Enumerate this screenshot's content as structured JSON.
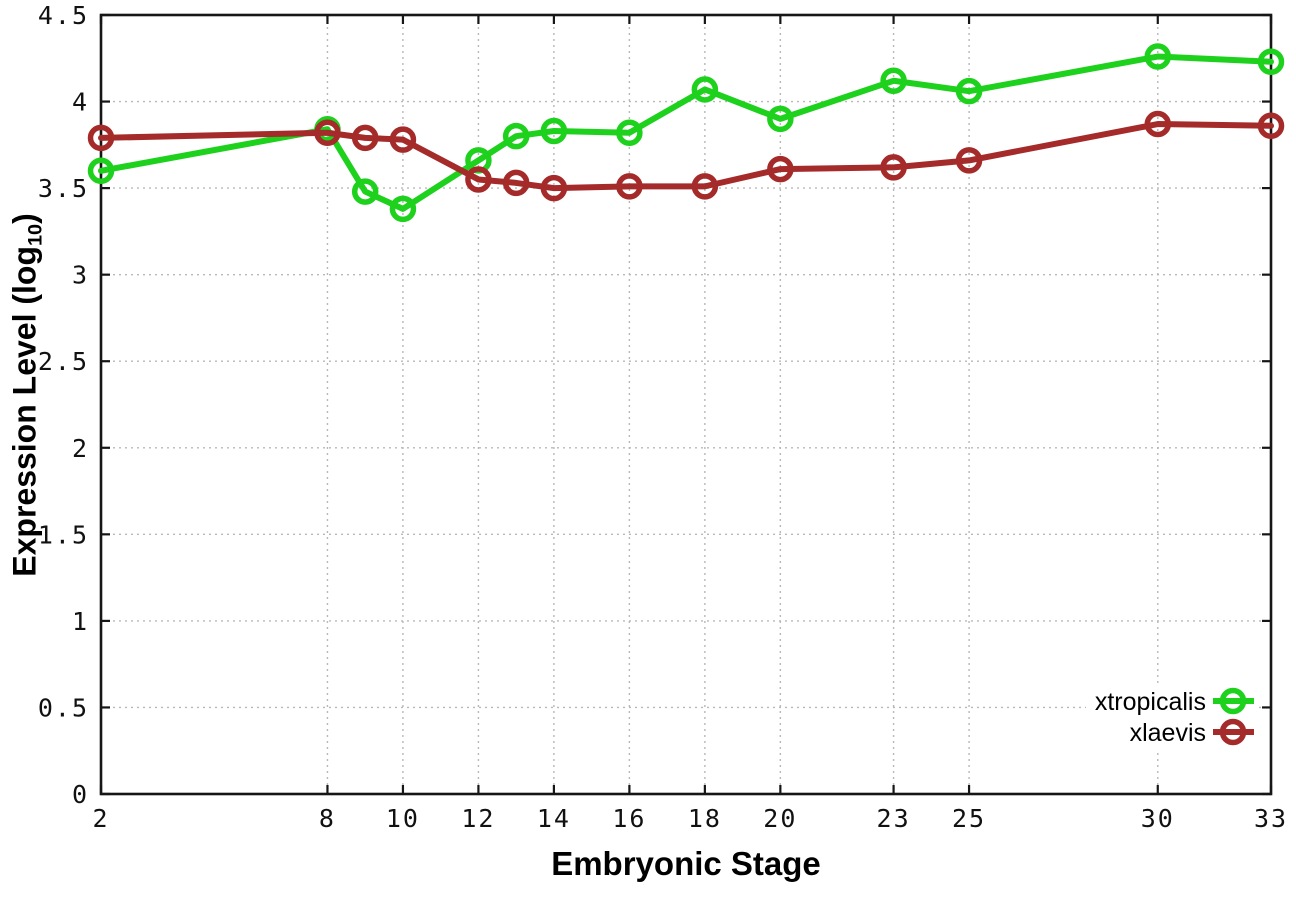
{
  "chart_data": {
    "type": "line",
    "title": "",
    "xlabel": "Embryonic Stage",
    "ylabel": "Expression Level (log10)",
    "ylabel_parts": {
      "prefix": "Expression Level (log",
      "sub": "10",
      "suffix": ")"
    },
    "x": [
      2,
      8,
      9,
      10,
      12,
      13,
      14,
      16,
      18,
      20,
      23,
      25,
      30,
      33
    ],
    "series": [
      {
        "name": "xtropicalis",
        "color": "#1dd11d",
        "values": [
          3.6,
          3.84,
          3.48,
          3.38,
          3.66,
          3.8,
          3.83,
          3.82,
          4.07,
          3.9,
          4.12,
          4.06,
          4.26,
          4.23
        ]
      },
      {
        "name": "xlaevis",
        "color": "#a52a2a",
        "values": [
          3.79,
          3.82,
          3.79,
          3.78,
          3.55,
          3.53,
          3.5,
          3.51,
          3.51,
          3.61,
          3.62,
          3.66,
          3.87,
          3.86
        ]
      }
    ],
    "xlim": [
      2,
      33
    ],
    "ylim": [
      0,
      4.5
    ],
    "xticks": [
      2,
      8,
      10,
      12,
      14,
      16,
      18,
      20,
      23,
      25,
      30,
      33
    ],
    "yticks": [
      0,
      0.5,
      1,
      1.5,
      2,
      2.5,
      3,
      3.5,
      4,
      4.5
    ],
    "grid": true,
    "marker": "open-circle",
    "legend_position": "bottom-right",
    "legend_entries": [
      "xtropicalis",
      "xlaevis"
    ]
  }
}
